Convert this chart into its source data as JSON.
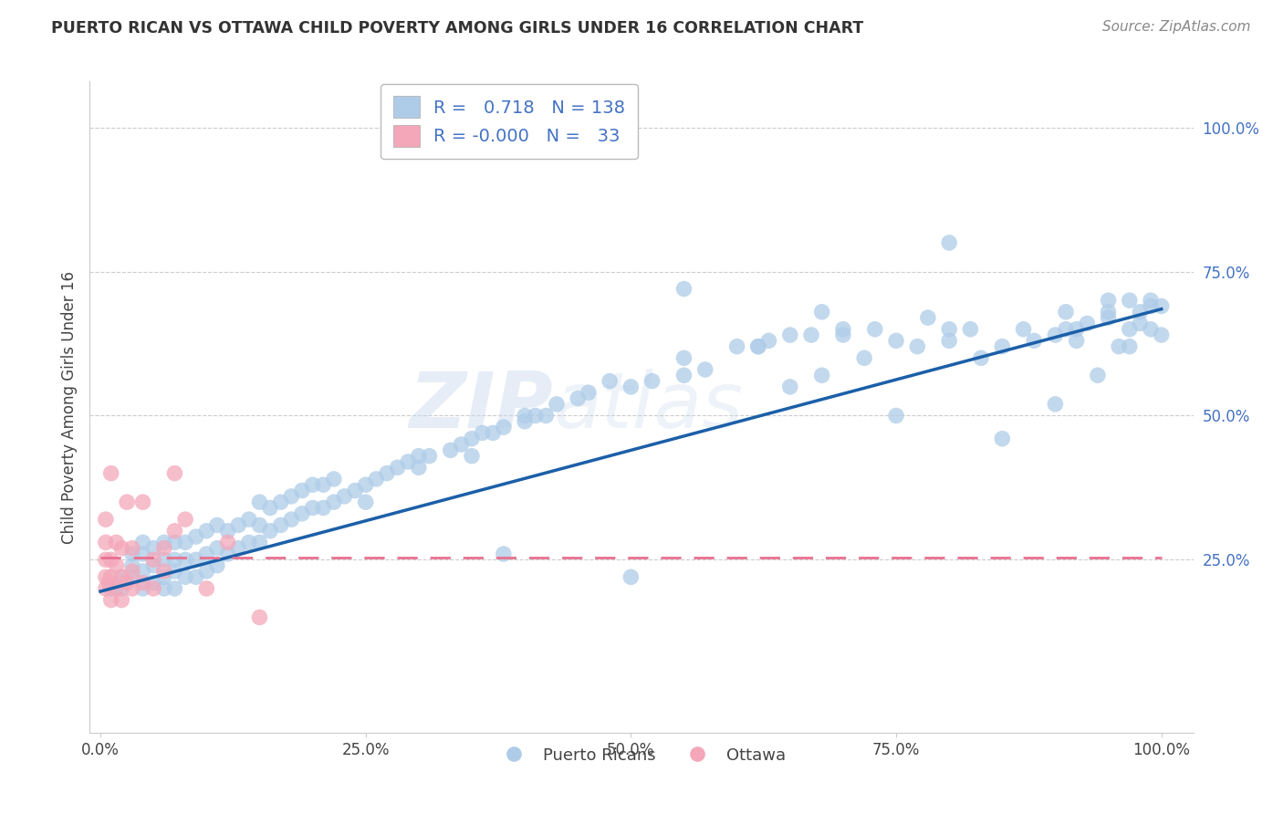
{
  "title": "PUERTO RICAN VS OTTAWA CHILD POVERTY AMONG GIRLS UNDER 16 CORRELATION CHART",
  "source": "Source: ZipAtlas.com",
  "ylabel": "Child Poverty Among Girls Under 16",
  "xlabel": "",
  "xlim": [
    -0.01,
    1.03
  ],
  "ylim": [
    -0.05,
    1.08
  ],
  "xticks": [
    0.0,
    0.25,
    0.5,
    0.75,
    1.0
  ],
  "yticks": [
    0.25,
    0.5,
    0.75,
    1.0
  ],
  "xticklabels": [
    "0.0%",
    "25.0%",
    "50.0%",
    "75.0%",
    "100.0%"
  ],
  "yticklabels": [
    "25.0%",
    "50.0%",
    "75.0%",
    "100.0%"
  ],
  "blue_R": "0.718",
  "blue_N": "138",
  "pink_R": "-0.000",
  "pink_N": "33",
  "blue_color": "#AECCE8",
  "pink_color": "#F4A7B9",
  "blue_line_color": "#1B5FA8",
  "pink_line_color": "#E87090",
  "watermark_top": "ZIP",
  "watermark_bot": "atlas",
  "legend_label_blue": "Puerto Ricans",
  "legend_label_pink": "Ottawa",
  "blue_points_x": [
    0.01,
    0.02,
    0.02,
    0.03,
    0.03,
    0.03,
    0.04,
    0.04,
    0.04,
    0.04,
    0.05,
    0.05,
    0.05,
    0.06,
    0.06,
    0.06,
    0.06,
    0.07,
    0.07,
    0.07,
    0.07,
    0.08,
    0.08,
    0.08,
    0.09,
    0.09,
    0.09,
    0.1,
    0.1,
    0.1,
    0.11,
    0.11,
    0.11,
    0.12,
    0.12,
    0.13,
    0.13,
    0.14,
    0.14,
    0.15,
    0.15,
    0.15,
    0.16,
    0.16,
    0.17,
    0.17,
    0.18,
    0.18,
    0.19,
    0.19,
    0.2,
    0.2,
    0.21,
    0.21,
    0.22,
    0.22,
    0.23,
    0.24,
    0.25,
    0.26,
    0.27,
    0.28,
    0.29,
    0.3,
    0.31,
    0.33,
    0.34,
    0.35,
    0.36,
    0.37,
    0.38,
    0.38,
    0.4,
    0.41,
    0.42,
    0.43,
    0.45,
    0.46,
    0.48,
    0.5,
    0.5,
    0.52,
    0.55,
    0.55,
    0.57,
    0.6,
    0.62,
    0.63,
    0.65,
    0.65,
    0.67,
    0.68,
    0.7,
    0.72,
    0.73,
    0.75,
    0.75,
    0.77,
    0.78,
    0.8,
    0.82,
    0.83,
    0.85,
    0.85,
    0.87,
    0.88,
    0.9,
    0.9,
    0.91,
    0.92,
    0.93,
    0.94,
    0.95,
    0.95,
    0.96,
    0.97,
    0.97,
    0.98,
    0.98,
    0.99,
    0.99,
    1.0,
    1.0,
    0.3,
    0.35,
    0.62,
    0.7,
    0.8,
    0.91,
    0.95,
    0.97,
    0.99,
    0.25,
    0.4,
    0.55,
    0.68,
    0.8,
    0.92
  ],
  "blue_points_y": [
    0.2,
    0.2,
    0.22,
    0.22,
    0.24,
    0.26,
    0.2,
    0.23,
    0.26,
    0.28,
    0.21,
    0.24,
    0.27,
    0.2,
    0.22,
    0.25,
    0.28,
    0.2,
    0.23,
    0.25,
    0.28,
    0.22,
    0.25,
    0.28,
    0.22,
    0.25,
    0.29,
    0.23,
    0.26,
    0.3,
    0.24,
    0.27,
    0.31,
    0.26,
    0.3,
    0.27,
    0.31,
    0.28,
    0.32,
    0.28,
    0.31,
    0.35,
    0.3,
    0.34,
    0.31,
    0.35,
    0.32,
    0.36,
    0.33,
    0.37,
    0.34,
    0.38,
    0.34,
    0.38,
    0.35,
    0.39,
    0.36,
    0.37,
    0.38,
    0.39,
    0.4,
    0.41,
    0.42,
    0.41,
    0.43,
    0.44,
    0.45,
    0.46,
    0.47,
    0.47,
    0.48,
    0.26,
    0.49,
    0.5,
    0.5,
    0.52,
    0.53,
    0.54,
    0.56,
    0.22,
    0.55,
    0.56,
    0.57,
    0.6,
    0.58,
    0.62,
    0.62,
    0.63,
    0.64,
    0.55,
    0.64,
    0.57,
    0.65,
    0.6,
    0.65,
    0.63,
    0.5,
    0.62,
    0.67,
    0.63,
    0.65,
    0.6,
    0.62,
    0.46,
    0.65,
    0.63,
    0.64,
    0.52,
    0.65,
    0.63,
    0.66,
    0.57,
    0.67,
    0.7,
    0.62,
    0.62,
    0.65,
    0.66,
    0.68,
    0.65,
    0.69,
    0.64,
    0.69,
    0.43,
    0.43,
    0.62,
    0.64,
    0.65,
    0.68,
    0.68,
    0.7,
    0.7,
    0.35,
    0.5,
    0.72,
    0.68,
    0.8,
    0.65
  ],
  "pink_points_x": [
    0.005,
    0.005,
    0.005,
    0.005,
    0.005,
    0.008,
    0.01,
    0.01,
    0.01,
    0.01,
    0.015,
    0.015,
    0.015,
    0.02,
    0.02,
    0.02,
    0.025,
    0.025,
    0.03,
    0.03,
    0.03,
    0.04,
    0.04,
    0.05,
    0.05,
    0.06,
    0.06,
    0.07,
    0.07,
    0.08,
    0.1,
    0.12,
    0.15
  ],
  "pink_points_y": [
    0.2,
    0.22,
    0.25,
    0.28,
    0.32,
    0.21,
    0.18,
    0.22,
    0.25,
    0.4,
    0.2,
    0.24,
    0.28,
    0.18,
    0.22,
    0.27,
    0.21,
    0.35,
    0.2,
    0.23,
    0.27,
    0.21,
    0.35,
    0.2,
    0.25,
    0.23,
    0.27,
    0.4,
    0.3,
    0.32,
    0.2,
    0.28,
    0.15
  ],
  "pink_line_y_at_0": 0.253,
  "pink_line_y_at_1": 0.253,
  "blue_line_y_at_0": 0.195,
  "blue_line_y_at_1": 0.685
}
